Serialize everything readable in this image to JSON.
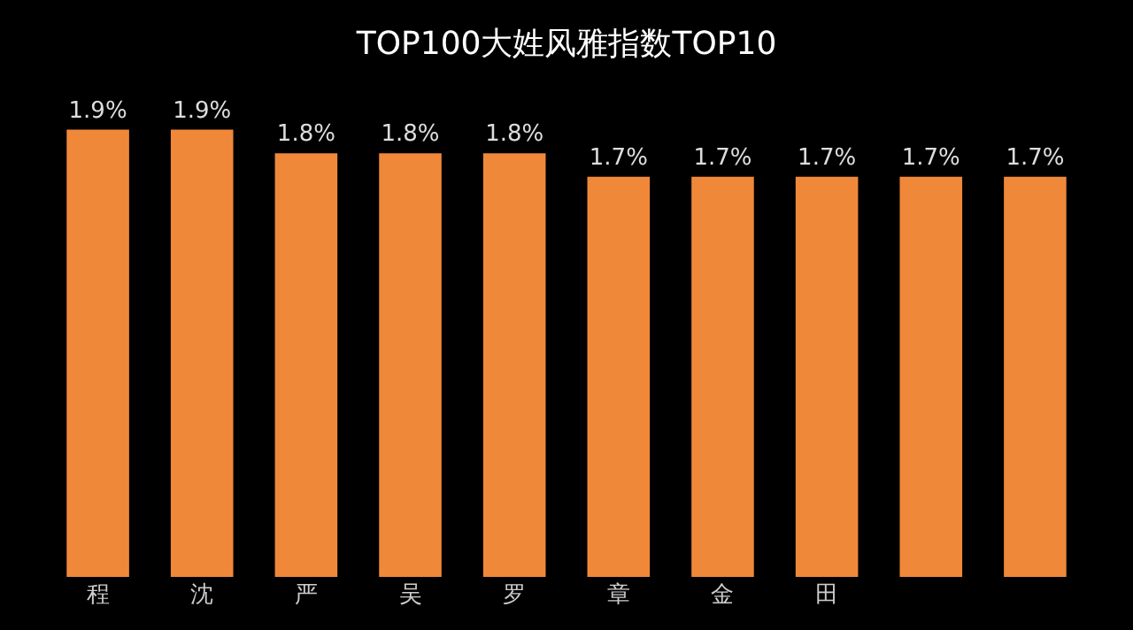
{
  "chart_data": {
    "type": "bar",
    "title": "TOP100大姓风雅指数TOP10",
    "categories": [
      "程",
      "沈",
      "严",
      "吴",
      "罗",
      "章",
      "金",
      "田",
      null,
      null
    ],
    "values": [
      1.9,
      1.9,
      1.8,
      1.8,
      1.8,
      1.7,
      1.7,
      1.7,
      1.7,
      1.7
    ],
    "value_labels": [
      "1.9%",
      "1.9%",
      "1.8%",
      "1.8%",
      "1.8%",
      "1.7%",
      "1.7%",
      "1.7%",
      "1.7%",
      "1.7%"
    ],
    "color": "#f0883a",
    "grid": false,
    "legend": false,
    "tick_labels": "x"
  }
}
